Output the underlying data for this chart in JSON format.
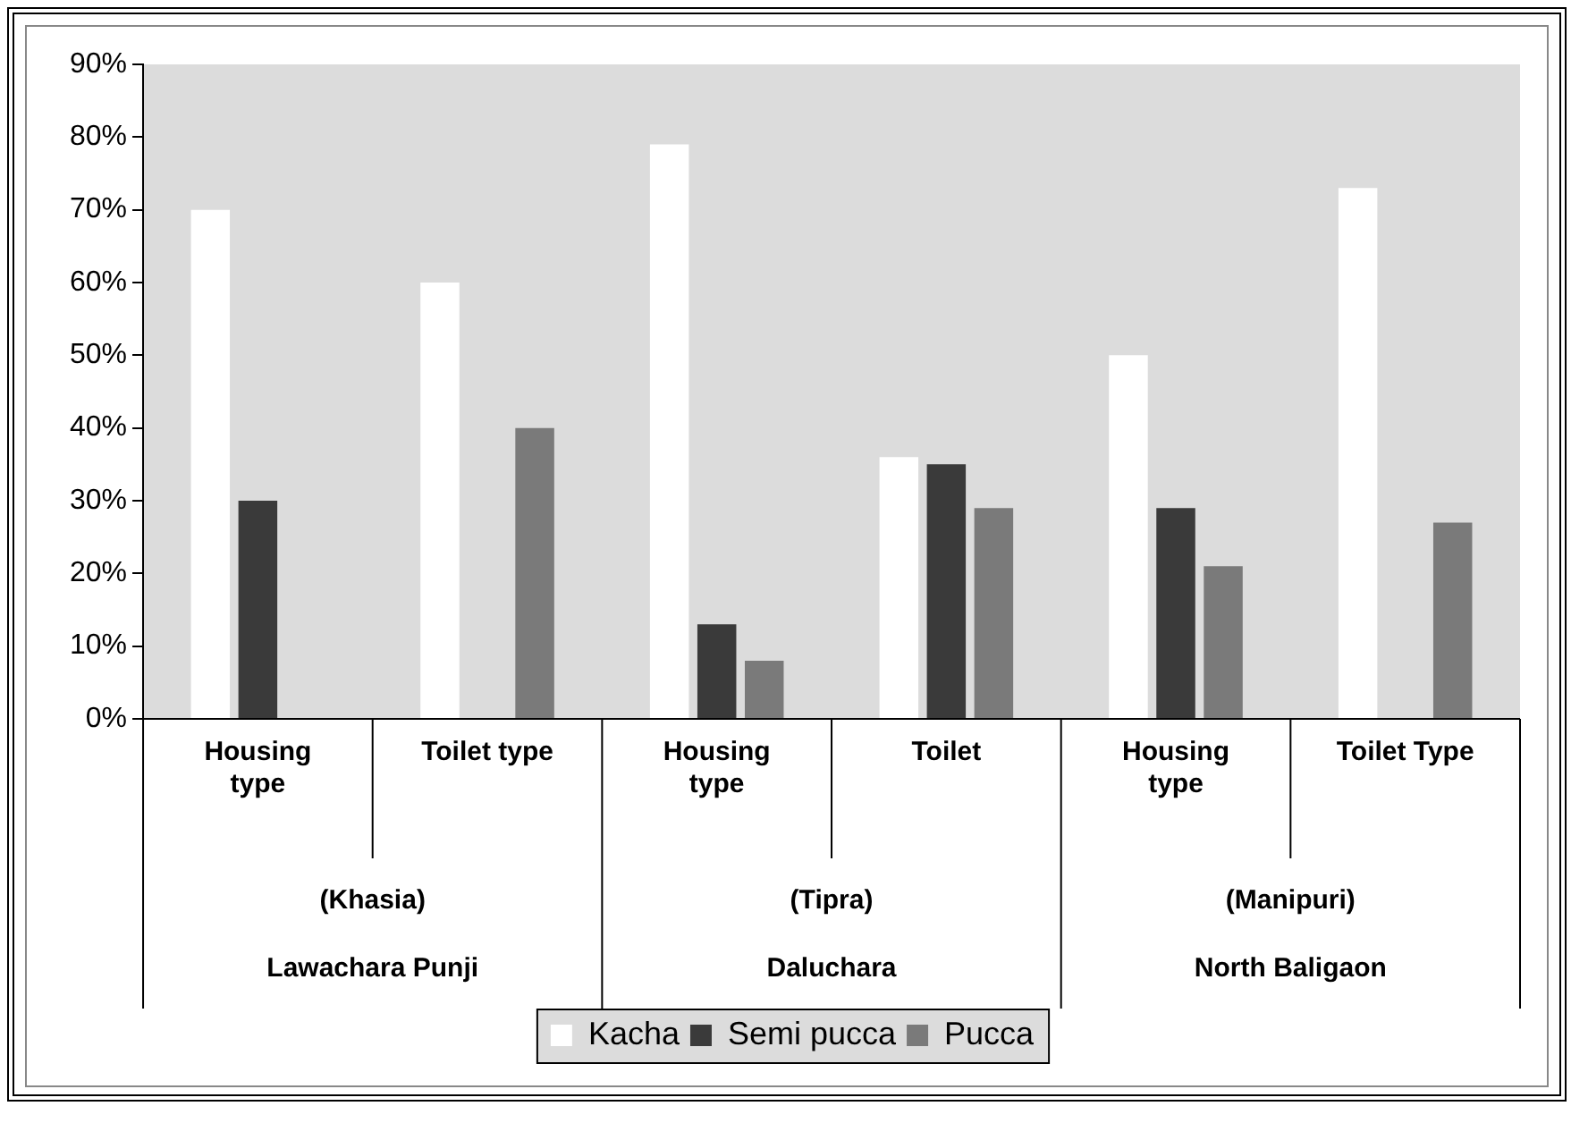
{
  "chart_data": {
    "type": "bar",
    "categories": [
      "Housing type",
      "Toilet type",
      "Housing type",
      "Toilet",
      "Housing type",
      "Toilet Type"
    ],
    "series": [
      {
        "name": "Kacha",
        "color": "#ffffff",
        "values": [
          70,
          60,
          79,
          36,
          50,
          73
        ]
      },
      {
        "name": "Semi pucca",
        "color": "#3a3a3a",
        "values": [
          30,
          null,
          13,
          35,
          29,
          null
        ]
      },
      {
        "name": "Pucca",
        "color": "#7a7a7a",
        "values": [
          null,
          40,
          8,
          29,
          21,
          27
        ]
      }
    ],
    "ylim": [
      0,
      90
    ],
    "yticks": [
      {
        "value": 0,
        "label": "0%"
      },
      {
        "value": 10,
        "label": "10%"
      },
      {
        "value": 20,
        "label": "20%"
      },
      {
        "value": 30,
        "label": "30%"
      },
      {
        "value": 40,
        "label": "40%"
      },
      {
        "value": 50,
        "label": "50%"
      },
      {
        "value": 60,
        "label": "60%"
      },
      {
        "value": 70,
        "label": "70%"
      },
      {
        "value": 80,
        "label": "80%"
      },
      {
        "value": 90,
        "label": "90%"
      }
    ],
    "annotations": [
      "(Khasia)",
      "Lawachara Punji",
      "(Tipra)",
      "Daluchara",
      "(Manipuri)",
      "North Baligaon"
    ],
    "grid": false,
    "legend": "bottom"
  }
}
